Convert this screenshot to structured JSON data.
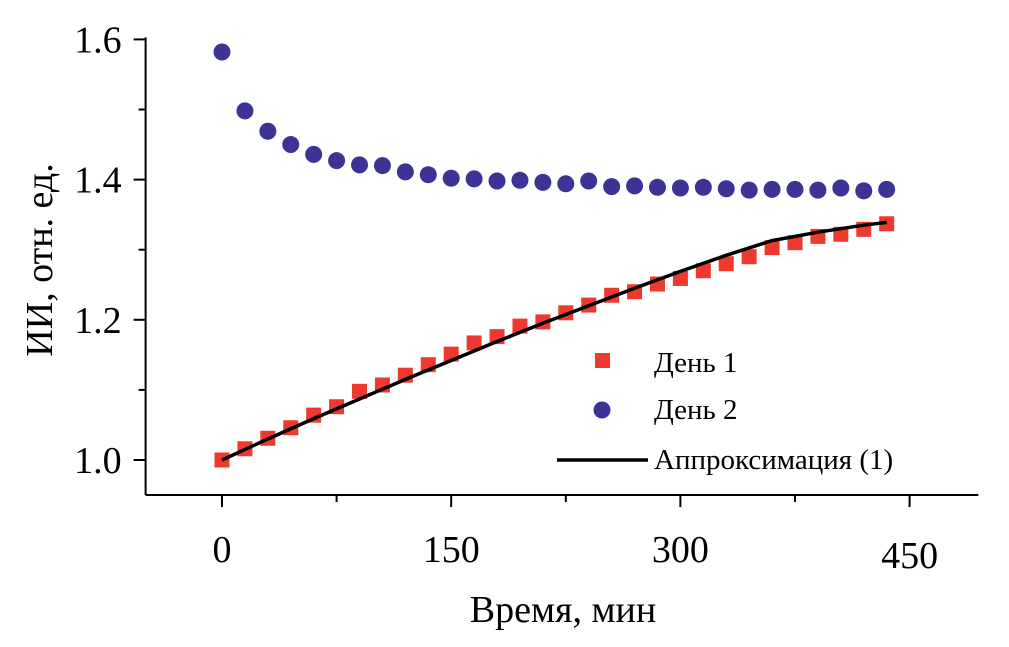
{
  "chart_data": {
    "type": "scatter",
    "title": "",
    "xlabel": "Время, мин",
    "ylabel": "ИИ, отн. ед.",
    "xlim": [
      -50,
      495
    ],
    "ylim": [
      0.95,
      1.6
    ],
    "x_ticks": [
      0,
      150,
      300,
      450
    ],
    "x_tick_labels": [
      "0",
      "150",
      "300",
      "450"
    ],
    "y_ticks": [
      1.0,
      1.2,
      1.4,
      1.6
    ],
    "y_tick_labels": [
      "1.0",
      "1.2",
      "1.4",
      "1.6"
    ],
    "grid": false,
    "legend_position": "bottom-right",
    "series": [
      {
        "name": "День 1",
        "marker": "square",
        "color": "#ee3a2e",
        "x": [
          0,
          15,
          30,
          45,
          60,
          75,
          90,
          105,
          120,
          135,
          150,
          165,
          180,
          195,
          210,
          225,
          240,
          255,
          270,
          285,
          300,
          315,
          330,
          345,
          360,
          375,
          390,
          405,
          420,
          435
        ],
        "y": [
          1.0,
          1.016,
          1.031,
          1.046,
          1.064,
          1.076,
          1.098,
          1.107,
          1.121,
          1.136,
          1.151,
          1.167,
          1.176,
          1.191,
          1.197,
          1.21,
          1.221,
          1.235,
          1.24,
          1.251,
          1.259,
          1.27,
          1.28,
          1.29,
          1.303,
          1.31,
          1.319,
          1.322,
          1.329,
          1.337
        ]
      },
      {
        "name": "День 2",
        "marker": "circle",
        "color": "#3d3295",
        "x": [
          0,
          15,
          30,
          45,
          60,
          75,
          90,
          105,
          120,
          135,
          150,
          165,
          180,
          195,
          210,
          225,
          240,
          255,
          270,
          285,
          300,
          315,
          330,
          345,
          360,
          375,
          390,
          405,
          420,
          435
        ],
        "y": [
          1.582,
          1.498,
          1.469,
          1.45,
          1.436,
          1.427,
          1.421,
          1.42,
          1.411,
          1.407,
          1.402,
          1.401,
          1.398,
          1.399,
          1.396,
          1.394,
          1.398,
          1.39,
          1.391,
          1.389,
          1.388,
          1.389,
          1.387,
          1.385,
          1.386,
          1.386,
          1.385,
          1.388,
          1.384,
          1.386
        ]
      },
      {
        "name": "Аппроксимация (1)",
        "marker": "line",
        "color": "#000000",
        "x": [
          0,
          30,
          60,
          90,
          120,
          150,
          180,
          210,
          240,
          270,
          300,
          330,
          360,
          390,
          420,
          435
        ],
        "y": [
          1.0,
          1.03,
          1.059,
          1.087,
          1.115,
          1.142,
          1.169,
          1.195,
          1.22,
          1.245,
          1.269,
          1.292,
          1.313,
          1.325,
          1.335,
          1.339
        ]
      }
    ]
  }
}
